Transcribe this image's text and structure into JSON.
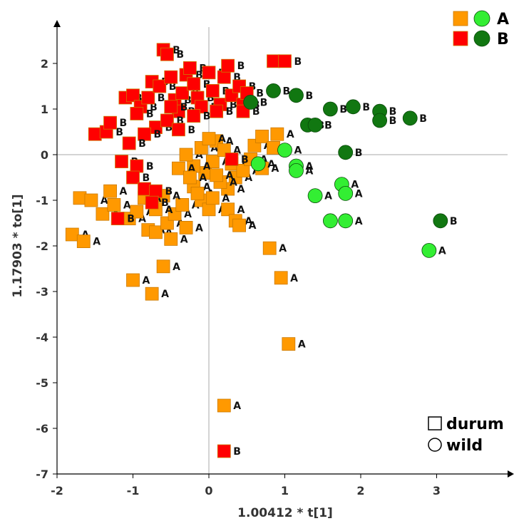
{
  "chart_data": {
    "type": "scatter",
    "xlabel": "1.00412 * t[1]",
    "ylabel": "1.17903 * to[1]",
    "xlim": [
      -2,
      4
    ],
    "ylim": [
      -7,
      3
    ],
    "x_ticks": [
      "-2",
      "-1",
      "0",
      "1",
      "2",
      "3"
    ],
    "y_ticks": [
      "-7",
      "-6",
      "-5",
      "-4",
      "-3",
      "-2",
      "-1",
      "0",
      "1",
      "2"
    ],
    "legend_position": "top-right",
    "groups": [
      {
        "name": "A",
        "label": "A",
        "square_color": "#ff9900",
        "circle_color": "#33ee33"
      },
      {
        "name": "B",
        "label": "B",
        "square_color": "#ff0000",
        "circle_color": "#117711"
      }
    ],
    "shapes_legend": [
      {
        "shape": "square",
        "label": "durum"
      },
      {
        "shape": "circle",
        "label": "wild"
      }
    ],
    "series": [
      {
        "name": "A-durum",
        "group": "A",
        "shape": "square",
        "points": [
          [
            -1.8,
            -1.75
          ],
          [
            -1.65,
            -1.9
          ],
          [
            -1.7,
            -0.95
          ],
          [
            -1.55,
            -1.0
          ],
          [
            -1.4,
            -1.3
          ],
          [
            -1.25,
            -1.1
          ],
          [
            -1.3,
            -0.8
          ],
          [
            -1.05,
            -1.4
          ],
          [
            -0.95,
            -1.25
          ],
          [
            -0.8,
            -1.65
          ],
          [
            -0.7,
            -1.7
          ],
          [
            -0.55,
            -1.5
          ],
          [
            -0.45,
            -1.3
          ],
          [
            -0.35,
            -1.1
          ],
          [
            -0.6,
            -0.9
          ],
          [
            -0.7,
            -1.2
          ],
          [
            -0.85,
            -0.95
          ],
          [
            -0.5,
            -1.85
          ],
          [
            -0.3,
            -1.6
          ],
          [
            -0.2,
            -0.7
          ],
          [
            -0.1,
            -1.0
          ],
          [
            0.0,
            -1.2
          ],
          [
            -0.05,
            -0.4
          ],
          [
            0.05,
            -0.15
          ],
          [
            -0.2,
            -0.25
          ],
          [
            -0.4,
            -0.3
          ],
          [
            -0.3,
            0.0
          ],
          [
            -0.1,
            0.15
          ],
          [
            0.1,
            0.3
          ],
          [
            0.2,
            0.1
          ],
          [
            0.3,
            -0.2
          ],
          [
            0.35,
            -0.5
          ],
          [
            0.45,
            -0.35
          ],
          [
            0.25,
            -0.75
          ],
          [
            0.15,
            -0.6
          ],
          [
            0.0,
            0.35
          ],
          [
            0.55,
            -0.1
          ],
          [
            0.6,
            0.2
          ],
          [
            0.7,
            0.4
          ],
          [
            0.85,
            0.15
          ],
          [
            0.9,
            0.45
          ],
          [
            0.25,
            -1.2
          ],
          [
            0.35,
            -1.45
          ],
          [
            0.4,
            -1.55
          ],
          [
            -0.6,
            -2.45
          ],
          [
            -1.0,
            -2.75
          ],
          [
            -0.75,
            -3.05
          ],
          [
            0.8,
            -2.05
          ],
          [
            0.95,
            -2.7
          ],
          [
            1.05,
            -4.15
          ],
          [
            0.2,
            -5.5
          ],
          [
            0.7,
            -0.3
          ],
          [
            -0.25,
            -0.5
          ],
          [
            -0.15,
            -0.85
          ],
          [
            0.1,
            -0.45
          ],
          [
            0.05,
            -0.95
          ]
        ]
      },
      {
        "name": "A-wild",
        "group": "A",
        "shape": "circle",
        "points": [
          [
            0.65,
            -0.2
          ],
          [
            1.0,
            0.1
          ],
          [
            1.15,
            -0.25
          ],
          [
            1.15,
            -0.35
          ],
          [
            1.4,
            -0.9
          ],
          [
            1.6,
            -1.45
          ],
          [
            1.8,
            -1.45
          ],
          [
            1.75,
            -0.65
          ],
          [
            1.8,
            -0.85
          ],
          [
            2.9,
            -2.1
          ]
        ]
      },
      {
        "name": "B-durum",
        "group": "B",
        "shape": "square",
        "points": [
          [
            -1.5,
            0.45
          ],
          [
            -1.35,
            0.5
          ],
          [
            -1.3,
            0.7
          ],
          [
            -1.1,
            1.25
          ],
          [
            -1.0,
            1.3
          ],
          [
            -0.9,
            1.05
          ],
          [
            -0.95,
            0.9
          ],
          [
            -0.8,
            1.25
          ],
          [
            -0.75,
            1.6
          ],
          [
            -0.65,
            1.5
          ],
          [
            -0.6,
            2.3
          ],
          [
            -0.55,
            2.2
          ],
          [
            -0.5,
            1.7
          ],
          [
            -0.45,
            1.2
          ],
          [
            -0.4,
            0.95
          ],
          [
            -0.35,
            1.35
          ],
          [
            -0.3,
            1.75
          ],
          [
            -0.25,
            1.9
          ],
          [
            -0.2,
            1.55
          ],
          [
            -0.15,
            1.25
          ],
          [
            -0.1,
            1.05
          ],
          [
            0.0,
            1.8
          ],
          [
            0.05,
            1.4
          ],
          [
            0.15,
            1.1
          ],
          [
            0.2,
            1.7
          ],
          [
            0.25,
            1.95
          ],
          [
            0.3,
            1.3
          ],
          [
            0.4,
            1.5
          ],
          [
            0.45,
            1.1
          ],
          [
            0.5,
            1.35
          ],
          [
            0.85,
            2.05
          ],
          [
            1.0,
            2.05
          ],
          [
            -0.7,
            0.6
          ],
          [
            -0.55,
            0.75
          ],
          [
            -0.4,
            0.55
          ],
          [
            -0.2,
            0.85
          ],
          [
            -0.85,
            0.45
          ],
          [
            -1.05,
            0.25
          ],
          [
            -1.15,
            -0.15
          ],
          [
            -0.95,
            -0.25
          ],
          [
            -1.0,
            -0.5
          ],
          [
            -0.85,
            -0.75
          ],
          [
            -0.7,
            -0.8
          ],
          [
            -0.75,
            -1.05
          ],
          [
            -1.2,
            -1.4
          ],
          [
            0.3,
            -0.1
          ],
          [
            0.45,
            0.95
          ],
          [
            0.2,
            -6.5
          ],
          [
            -0.5,
            1.05
          ],
          [
            0.1,
            0.95
          ]
        ]
      },
      {
        "name": "B-wild",
        "group": "B",
        "shape": "circle",
        "points": [
          [
            0.55,
            1.15
          ],
          [
            0.85,
            1.4
          ],
          [
            1.15,
            1.3
          ],
          [
            1.3,
            0.65
          ],
          [
            1.4,
            0.65
          ],
          [
            1.6,
            1.0
          ],
          [
            1.8,
            0.05
          ],
          [
            1.9,
            1.05
          ],
          [
            2.25,
            0.95
          ],
          [
            2.25,
            0.75
          ],
          [
            2.65,
            0.8
          ],
          [
            3.05,
            -1.45
          ]
        ]
      }
    ]
  }
}
